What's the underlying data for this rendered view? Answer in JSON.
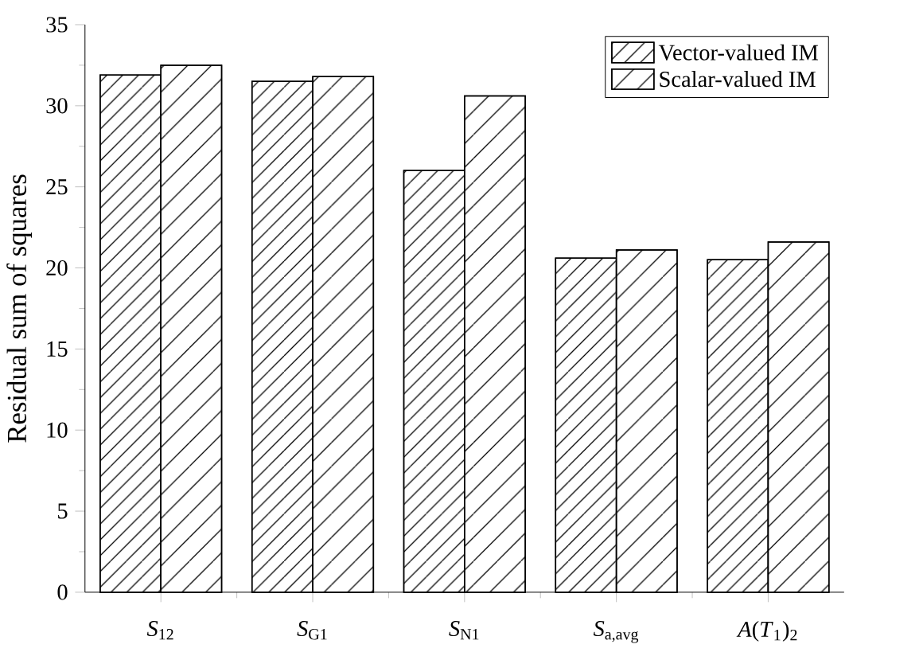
{
  "chart_data": {
    "type": "bar",
    "ylabel": "Residual sum of squares",
    "categories": [
      "*S*$_{12}$",
      "*S*$_{G1}$",
      "*S*$_{N1}$",
      "*S*$_{a,avg}$",
      "*A*(*T*$_{1}$)$_{2}$"
    ],
    "series": [
      {
        "name": "Vector-valued IM",
        "color": "#000000",
        "values": [
          31.9,
          31.5,
          26.0,
          20.6,
          20.5
        ]
      },
      {
        "name": "Scalar-valued IM",
        "color": "#000000",
        "values": [
          32.5,
          31.8,
          30.6,
          21.1,
          21.6
        ]
      }
    ],
    "ylim": [
      0,
      35
    ],
    "yticks": [
      0,
      5,
      10,
      15,
      20,
      25,
      30,
      35
    ],
    "legend": "top right",
    "grid": false
  }
}
